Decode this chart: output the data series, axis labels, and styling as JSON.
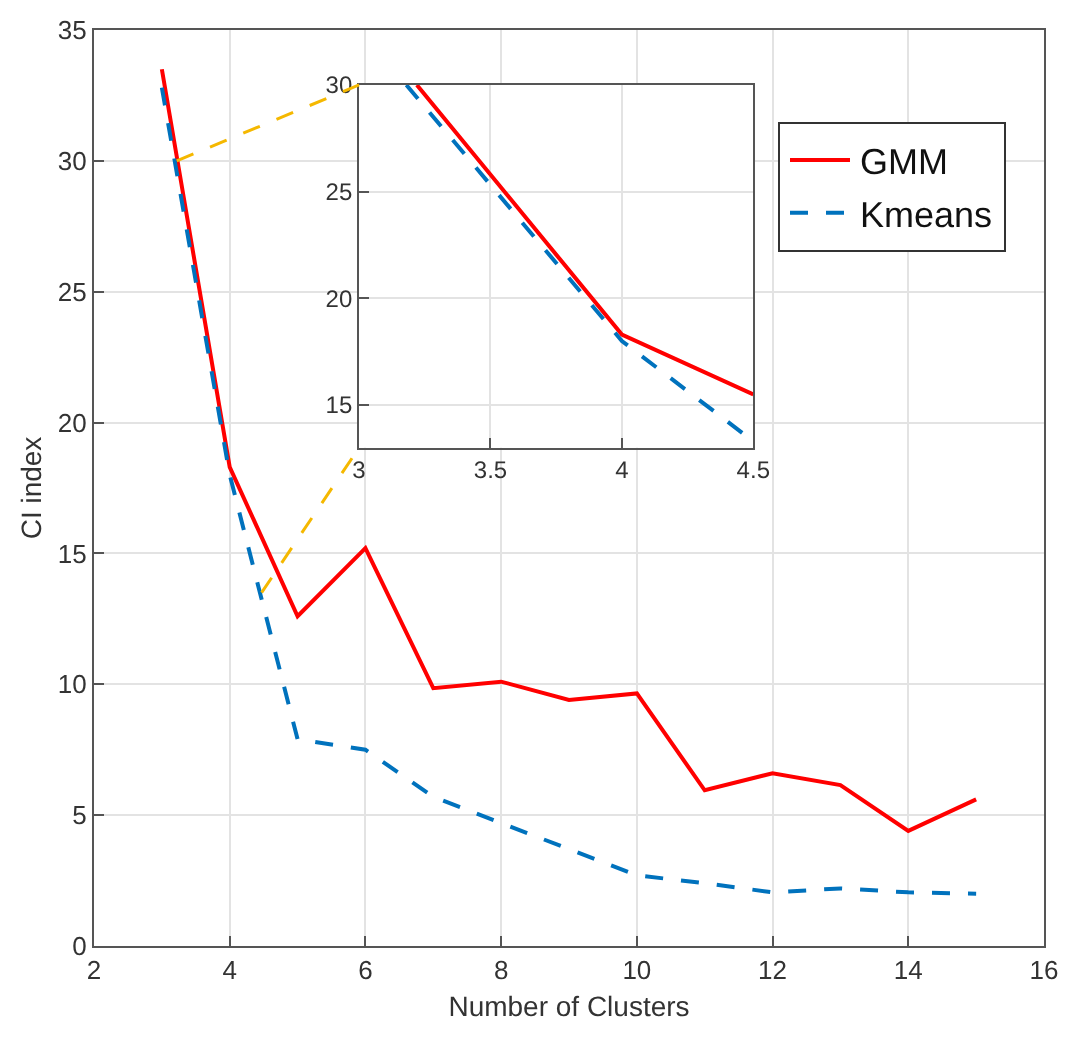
{
  "chart_data": [
    {
      "type": "line",
      "xlabel": "Number of Clusters",
      "ylabel": "CI index",
      "xlim": [
        2,
        16
      ],
      "ylim": [
        0,
        35
      ],
      "xticks": [
        2,
        4,
        6,
        8,
        10,
        12,
        14,
        16
      ],
      "yticks": [
        0,
        5,
        10,
        15,
        20,
        25,
        30,
        35
      ],
      "grid": true,
      "legend": "top right",
      "marker": "none",
      "x": [
        3,
        4,
        5,
        6,
        7,
        8,
        9,
        10,
        11,
        12,
        13,
        14,
        15
      ],
      "series": [
        {
          "name": "GMM",
          "color": "#ff0000",
          "line_style": "solid",
          "values": [
            33.5,
            18.3,
            12.6,
            15.2,
            9.85,
            10.1,
            9.4,
            9.65,
            5.95,
            6.6,
            6.15,
            4.4,
            5.6
          ]
        },
        {
          "name": "Kmeans",
          "color": "#0072bd",
          "line_style": "dashed",
          "values": [
            32.8,
            18.0,
            7.9,
            7.5,
            5.7,
            4.7,
            3.7,
            2.7,
            2.4,
            2.05,
            2.2,
            2.05,
            2.0
          ]
        }
      ]
    },
    {
      "type": "line",
      "xlim": [
        3,
        4.5
      ],
      "ylim": [
        13,
        30
      ],
      "xticks": [
        3,
        3.5,
        4,
        4.5
      ],
      "yticks": [
        15,
        20,
        25,
        30
      ],
      "grid": true,
      "marker": "none",
      "series": [
        {
          "color": "#ff0000",
          "line_style": "solid",
          "x": [
            3.22,
            4,
            4.5
          ],
          "values": [
            30,
            18.3,
            15.5
          ]
        },
        {
          "color": "#0072bd",
          "line_style": "dashed",
          "x": [
            3.18,
            4,
            4.5
          ],
          "values": [
            30,
            18.0,
            13.3
          ]
        }
      ]
    }
  ]
}
